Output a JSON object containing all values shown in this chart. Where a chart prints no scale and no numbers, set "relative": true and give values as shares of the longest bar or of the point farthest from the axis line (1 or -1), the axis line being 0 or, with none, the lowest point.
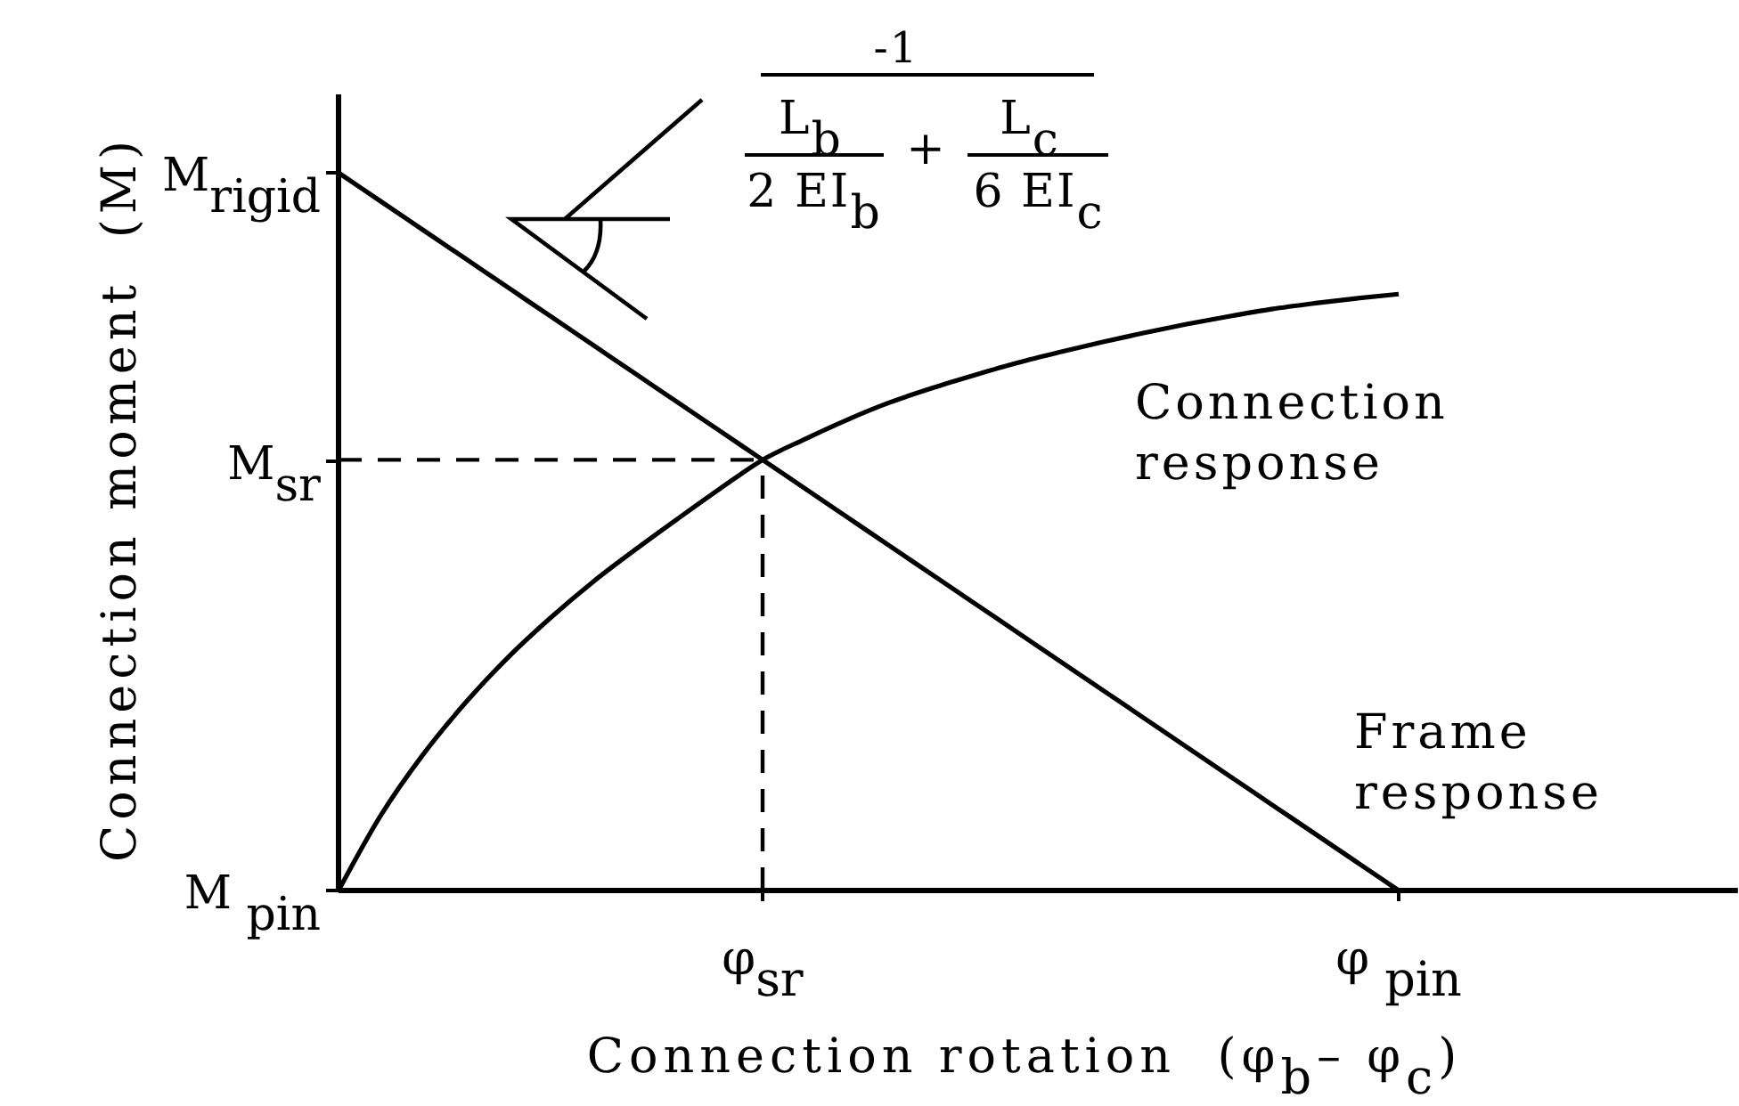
{
  "chart_data": {
    "type": "line",
    "relative": true,
    "xlabel": "Connection rotation  (φ$_{b}$– φ$_{c}$)",
    "ylabel": "Connection moment  (M)",
    "categories": [
      null,
      null,
      null,
      null,
      null,
      null,
      null,
      null,
      null,
      null,
      "φ$_{sr}$",
      null,
      null,
      null,
      null,
      null,
      null,
      null,
      null,
      null,
      null,
      null,
      null,
      null,
      null,
      "φ $_{pin}$",
      null,
      null,
      null,
      null,
      null,
      null,
      null,
      null
    ],
    "series": [
      {
        "name": "Frame response",
        "color": "#000000",
        "values": [
          1,
          0.96,
          0.92,
          0.88,
          0.84,
          0.8,
          0.76,
          0.72,
          0.68,
          0.64,
          0.6,
          0.56,
          0.52,
          0.48,
          0.44,
          0.4,
          0.36,
          0.32,
          0.28,
          0.24,
          0.2,
          0.16,
          0.12,
          0.08,
          0.04,
          0,
          null,
          null,
          null,
          null,
          null,
          null,
          null,
          null
        ]
      },
      {
        "name": "Connection response",
        "color": "#000000",
        "values": [
          0,
          0.105,
          0.19,
          0.262,
          0.325,
          0.38,
          0.43,
          0.475,
          0.518,
          0.56,
          0.6,
          0.629,
          0.656,
          0.68,
          0.7,
          0.718,
          0.735,
          0.75,
          0.764,
          0.777,
          0.789,
          0.8,
          0.81,
          0.818,
          0.825,
          0.831,
          null,
          null,
          null,
          null,
          null,
          null,
          null,
          null
        ]
      },
      {
        "color": "#000000",
        "line_style": "dashed",
        "values": [
          0.6,
          0.6,
          0.6,
          0.6,
          0.6,
          0.6,
          0.6,
          0.6,
          0.6,
          0.6,
          0.6,
          null,
          null,
          null,
          null,
          null,
          null,
          null,
          null,
          null,
          null,
          null,
          null,
          null,
          null,
          null,
          null,
          null,
          null,
          null,
          null,
          null,
          null,
          null
        ]
      }
    ],
    "ref_lines": [
      {
        "axis": "x",
        "value": "φ$_{sr}$",
        "line_style": "dashed",
        "color": "#000000"
      }
    ],
    "annotations": [
      "M$_{rigid}$",
      "M$_{sr}$",
      "M $_{pin}$",
      "-1",
      "L$_{b}$",
      "2 EI$_{b}$",
      "+",
      "L$_{c}$",
      "6 EI$_{c}$"
    ]
  }
}
